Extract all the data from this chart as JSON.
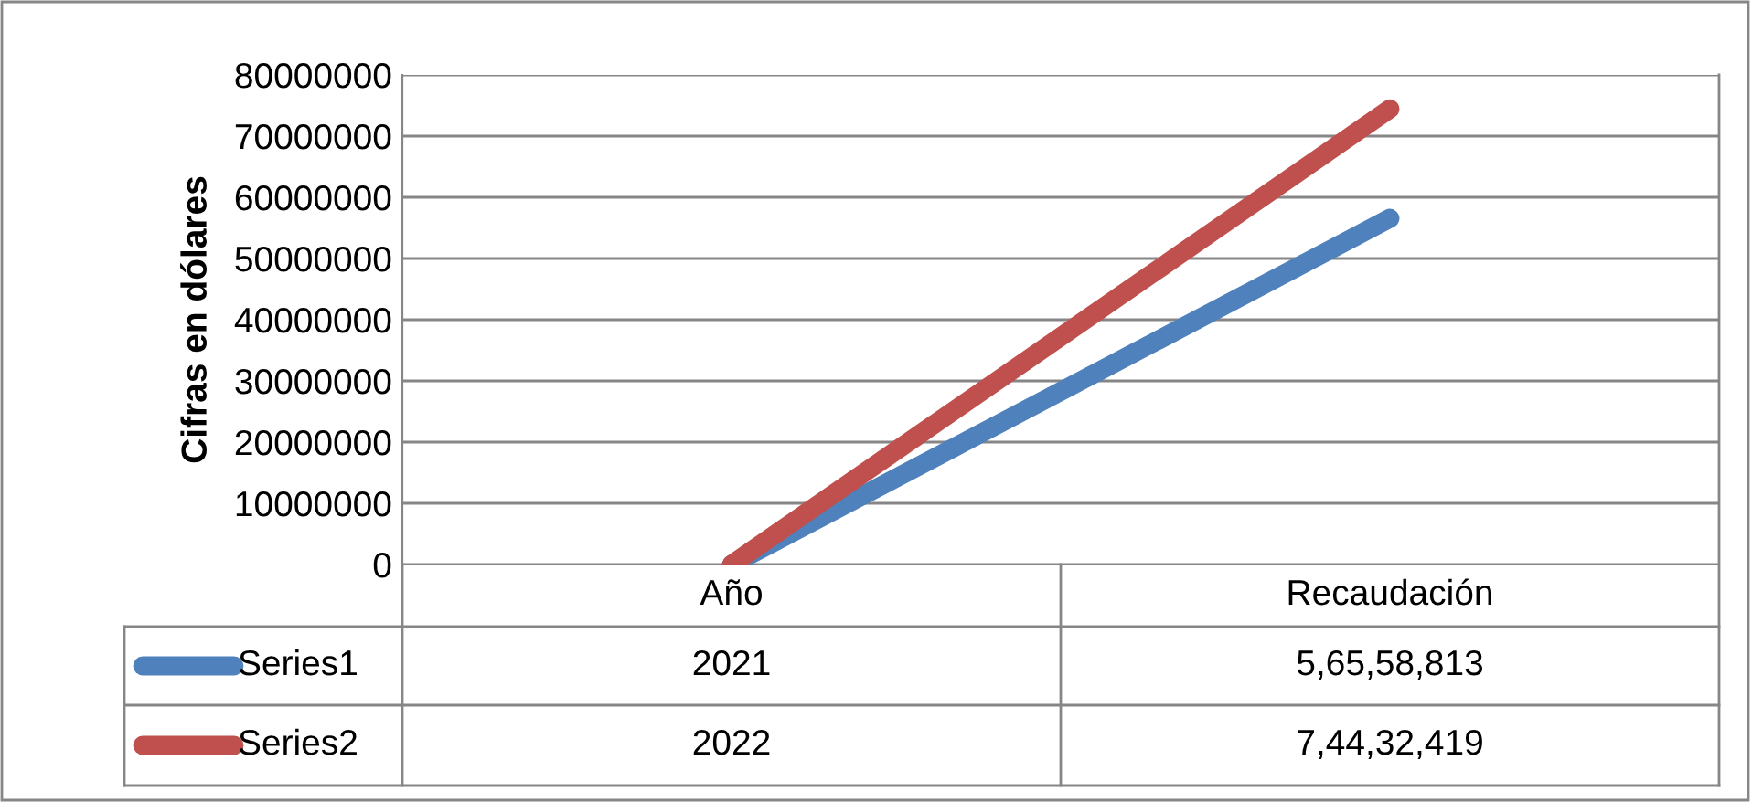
{
  "chart_data": {
    "type": "line",
    "ylabel": "Cifras en dólares",
    "categories": [
      "Año",
      "Recaudación"
    ],
    "series": [
      {
        "name": "Series1",
        "color": "#4f81bd",
        "values": [
          2021,
          56558813
        ],
        "value_labels": [
          "2021",
          "5,65,58,813"
        ]
      },
      {
        "name": "Series2",
        "color": "#c0504d",
        "values": [
          2022,
          74432419
        ],
        "value_labels": [
          "2022",
          "7,44,32,419"
        ]
      }
    ],
    "ylim": [
      0,
      80000000
    ],
    "yticks": [
      0,
      10000000,
      20000000,
      30000000,
      40000000,
      50000000,
      60000000,
      70000000,
      80000000
    ],
    "grid": "y",
    "legend": "bottom left",
    "marker": "none",
    "line_style": "solid"
  }
}
